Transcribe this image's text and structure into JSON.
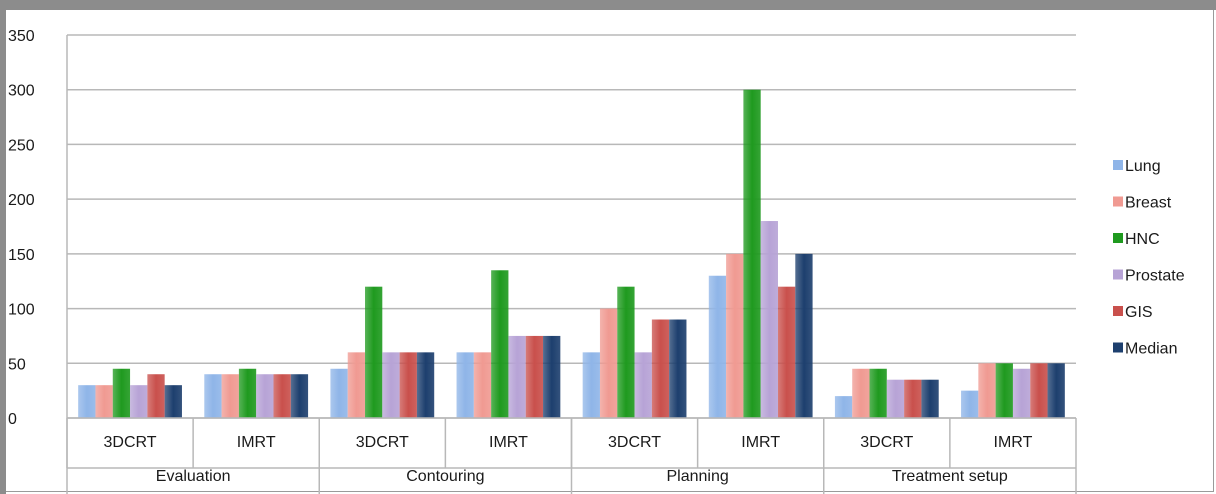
{
  "chart_data": {
    "type": "bar",
    "title": "",
    "xlabel": "",
    "ylabel": "",
    "ylim": [
      0,
      350
    ],
    "yticks": [
      "0",
      "50",
      "100",
      "150",
      "200",
      "250",
      "300",
      "350"
    ],
    "grid": true,
    "legend_position": "right",
    "groups": [
      {
        "label": "Evaluation",
        "categories": [
          "3DCRT",
          "IMRT"
        ]
      },
      {
        "label": "Contouring",
        "categories": [
          "3DCRT",
          "IMRT"
        ]
      },
      {
        "label": "Planning",
        "categories": [
          "3DCRT",
          "IMRT"
        ]
      },
      {
        "label": "Treatment setup",
        "categories": [
          "3DCRT",
          "IMRT"
        ]
      }
    ],
    "series": [
      {
        "name": "Lung",
        "color": "#8fb5e8",
        "values": [
          30,
          40,
          45,
          60,
          60,
          130,
          20,
          25
        ]
      },
      {
        "name": "Breast",
        "color": "#f09a92",
        "values": [
          30,
          40,
          60,
          60,
          100,
          150,
          45,
          50
        ]
      },
      {
        "name": "HNC",
        "color": "#1f9a1f",
        "values": [
          45,
          45,
          120,
          135,
          120,
          300,
          45,
          50
        ]
      },
      {
        "name": "Prostate",
        "color": "#b7a3d6",
        "values": [
          30,
          40,
          60,
          75,
          60,
          180,
          35,
          45
        ]
      },
      {
        "name": "GIS",
        "color": "#c9504c",
        "values": [
          40,
          40,
          60,
          75,
          90,
          120,
          35,
          50
        ]
      },
      {
        "name": "Median",
        "color": "#1d3f6e",
        "values": [
          30,
          40,
          60,
          75,
          90,
          150,
          35,
          50
        ]
      }
    ]
  }
}
